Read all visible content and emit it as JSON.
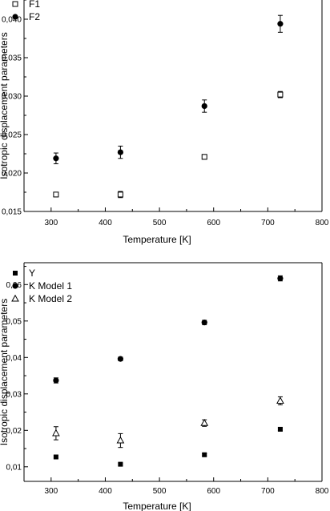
{
  "chart_data": [
    {
      "type": "scatter",
      "xlabel": "Temperature [K]",
      "ylabel": "Isotropic displacement parameters",
      "xlim": [
        250,
        800
      ],
      "ylim": [
        0.015,
        0.0425
      ],
      "xticks": [
        300,
        400,
        500,
        600,
        700,
        800
      ],
      "xtick_labels": [
        "300",
        "400",
        "500",
        "600",
        "700",
        "800"
      ],
      "yticks": [
        0.015,
        0.02,
        0.025,
        0.03,
        0.035,
        0.04
      ],
      "ytick_labels": [
        "0,015",
        "0,020",
        "0,025",
        "0,030",
        "0,035",
        "0,040"
      ],
      "legend_position": "top-left",
      "series": [
        {
          "name": "F1",
          "marker": "open-square",
          "x": [
            309,
            428,
            583,
            723
          ],
          "y": [
            0.0172,
            0.0172,
            0.0221,
            0.0302
          ],
          "err": [
            0.0003,
            0.0004,
            0.0003,
            0.0004
          ]
        },
        {
          "name": "F2",
          "marker": "filled-circle",
          "x": [
            309,
            428,
            583,
            723
          ],
          "y": [
            0.0219,
            0.0227,
            0.0287,
            0.0394
          ],
          "err": [
            0.0007,
            0.0008,
            0.0008,
            0.0011
          ]
        }
      ]
    },
    {
      "type": "scatter",
      "xlabel": "Temperature [K]",
      "ylabel": "Isotropic displacement parameters",
      "xlim": [
        250,
        800
      ],
      "ylim": [
        0.006,
        0.066
      ],
      "xticks": [
        300,
        400,
        500,
        600,
        700,
        800
      ],
      "xtick_labels": [
        "300",
        "400",
        "500",
        "600",
        "700",
        "800"
      ],
      "yticks": [
        0.01,
        0.02,
        0.03,
        0.04,
        0.05,
        0.06
      ],
      "ytick_labels": [
        "0,01",
        "0,02",
        "0,03",
        "0,04",
        "0,05",
        "0,06"
      ],
      "legend_position": "top-left",
      "series": [
        {
          "name": "Y",
          "marker": "filled-square",
          "x": [
            309,
            428,
            583,
            723
          ],
          "y": [
            0.0127,
            0.0107,
            0.0133,
            0.0203
          ],
          "err": [
            0.0003,
            0.0003,
            0.0003,
            0.0004
          ]
        },
        {
          "name": "K Model 1",
          "marker": "filled-circle",
          "x": [
            309,
            428,
            583,
            723
          ],
          "y": [
            0.0337,
            0.0396,
            0.0496,
            0.0617
          ],
          "err": [
            0.0007,
            0.0005,
            0.0006,
            0.0007
          ]
        },
        {
          "name": "K Model 2",
          "marker": "open-triangle",
          "x": [
            309,
            428,
            583,
            723
          ],
          "y": [
            0.0192,
            0.0172,
            0.022,
            0.0281
          ],
          "err": [
            0.0018,
            0.0019,
            0.0009,
            0.0011
          ]
        }
      ]
    }
  ]
}
